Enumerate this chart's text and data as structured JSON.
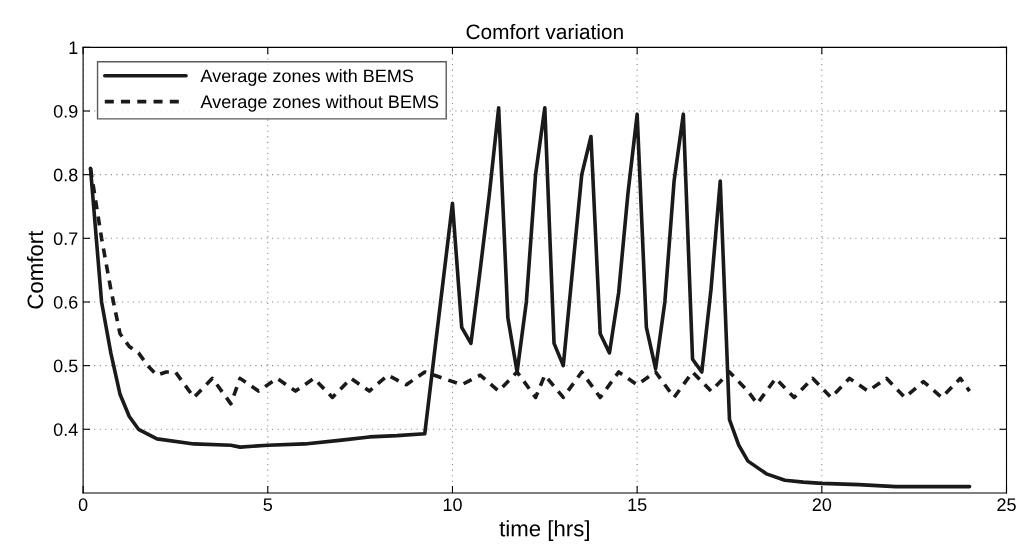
{
  "chart_data": {
    "type": "line",
    "title": "Comfort variation",
    "xlabel": "time [hrs]",
    "ylabel": "Comfort",
    "xlim": [
      0,
      25
    ],
    "xticks": [
      0,
      5,
      10,
      15,
      20,
      25
    ],
    "ylim": [
      0.3,
      1
    ],
    "yticks": [
      0.4,
      0.5,
      0.6,
      0.7,
      0.8,
      0.9,
      1
    ],
    "grid": true,
    "legend": "top left",
    "marker": "none",
    "series": [
      {
        "name": "Average zones with BEMS",
        "color": "#1a1a1a",
        "line_style": "solid",
        "x": [
          0.2,
          0.5,
          0.75,
          1,
          1.25,
          1.5,
          2,
          3,
          4,
          4.25,
          5,
          6,
          7,
          7.75,
          8.5,
          9.25,
          10,
          10.25,
          10.5,
          10.75,
          11,
          11.25,
          11.5,
          11.75,
          12,
          12.25,
          12.5,
          12.75,
          13,
          13.25,
          13.5,
          13.75,
          14,
          14.25,
          14.5,
          14.75,
          15,
          15.25,
          15.5,
          15.75,
          16,
          16.25,
          16.5,
          16.75,
          17,
          17.25,
          17.5,
          17.75,
          18,
          18.5,
          19,
          19.5,
          20,
          21,
          22,
          24
        ],
        "values": [
          0.81,
          0.6,
          0.52,
          0.455,
          0.42,
          0.4,
          0.385,
          0.377,
          0.375,
          0.372,
          0.375,
          0.377,
          0.383,
          0.388,
          0.39,
          0.393,
          0.755,
          0.56,
          0.535,
          0.65,
          0.77,
          0.905,
          0.575,
          0.49,
          0.6,
          0.8,
          0.905,
          0.535,
          0.5,
          0.65,
          0.8,
          0.86,
          0.55,
          0.52,
          0.615,
          0.77,
          0.895,
          0.56,
          0.495,
          0.6,
          0.79,
          0.895,
          0.51,
          0.49,
          0.62,
          0.79,
          0.415,
          0.375,
          0.35,
          0.33,
          0.32,
          0.317,
          0.315,
          0.313,
          0.31,
          0.31
        ]
      },
      {
        "name": "Average zones without BEMS",
        "color": "#1a1a1a",
        "line_style": "dashed",
        "x": [
          0.2,
          0.5,
          0.75,
          1,
          1.25,
          1.5,
          1.75,
          2,
          2.25,
          2.5,
          2.75,
          3,
          3.5,
          4,
          4.25,
          4.75,
          5.25,
          5.75,
          6.25,
          6.75,
          7.25,
          7.75,
          8.25,
          8.75,
          9.25,
          9.75,
          10.25,
          10.75,
          11.25,
          11.75,
          12.25,
          12.5,
          13,
          13.5,
          14,
          14.5,
          15,
          15.5,
          16,
          16.5,
          17,
          17.5,
          18,
          18.25,
          18.75,
          19.25,
          19.75,
          20.25,
          20.75,
          21.25,
          21.75,
          22.25,
          22.75,
          23.25,
          23.75,
          24
        ],
        "values": [
          0.81,
          0.7,
          0.62,
          0.55,
          0.53,
          0.52,
          0.5,
          0.485,
          0.49,
          0.49,
          0.47,
          0.45,
          0.48,
          0.44,
          0.48,
          0.46,
          0.48,
          0.46,
          0.48,
          0.45,
          0.48,
          0.46,
          0.485,
          0.47,
          0.49,
          0.48,
          0.47,
          0.485,
          0.46,
          0.49,
          0.45,
          0.485,
          0.45,
          0.49,
          0.45,
          0.49,
          0.47,
          0.49,
          0.45,
          0.49,
          0.46,
          0.49,
          0.46,
          0.44,
          0.48,
          0.45,
          0.48,
          0.45,
          0.48,
          0.46,
          0.48,
          0.45,
          0.475,
          0.45,
          0.48,
          0.46
        ]
      }
    ]
  }
}
